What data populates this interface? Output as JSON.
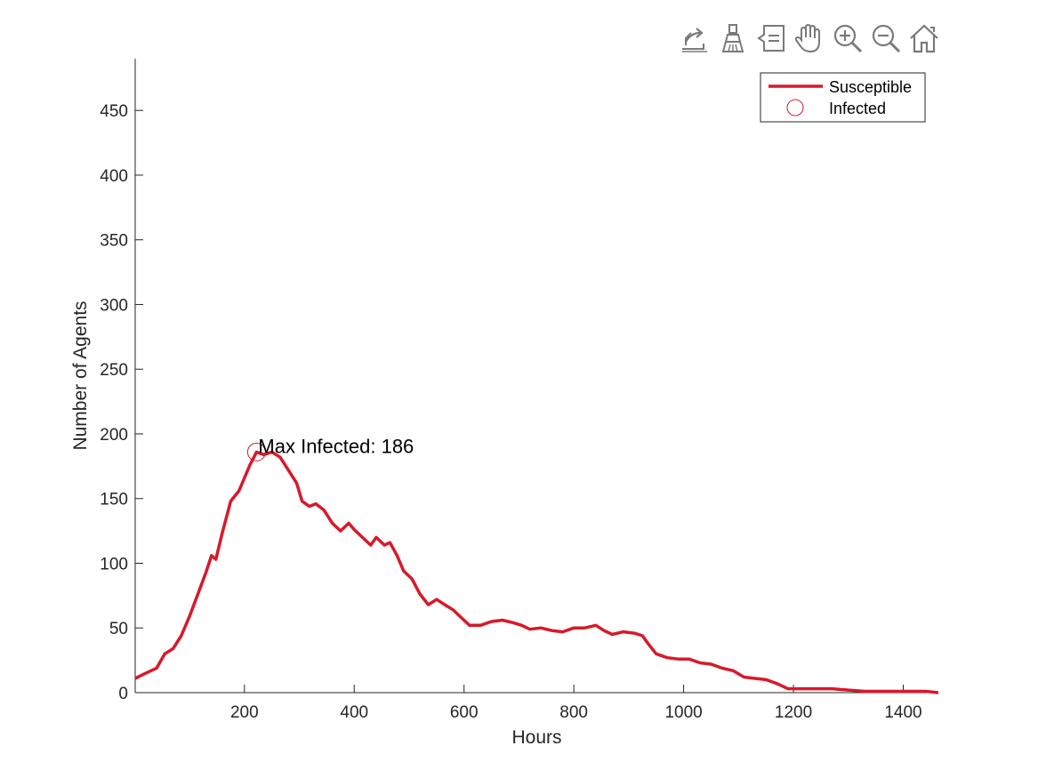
{
  "toolbar": {
    "items": [
      {
        "name": "export-icon"
      },
      {
        "name": "brush-icon"
      },
      {
        "name": "data-tips-icon"
      },
      {
        "name": "pan-hand-icon"
      },
      {
        "name": "zoom-in-icon"
      },
      {
        "name": "zoom-out-icon"
      },
      {
        "name": "home-icon"
      }
    ],
    "icon_color": "#7a7a7a"
  },
  "chart_data": {
    "type": "line",
    "xlabel": "Hours",
    "ylabel": "Number of Agents",
    "xlim": [
      1,
      1464
    ],
    "ylim": [
      0,
      490
    ],
    "xticks": [
      200,
      400,
      600,
      800,
      1000,
      1200,
      1400
    ],
    "yticks": [
      0,
      50,
      100,
      150,
      200,
      250,
      300,
      350,
      400,
      450
    ],
    "grid": false,
    "legend": {
      "placement": "top-right",
      "entries": [
        {
          "label": "Susceptible",
          "marker": "line",
          "color": "#d7192a"
        },
        {
          "label": "Infected",
          "marker": "circle",
          "color": "#d7192a"
        }
      ]
    },
    "series": [
      {
        "name": "Susceptible",
        "color": "#d7192a",
        "points": [
          [
            1,
            11
          ],
          [
            20,
            15
          ],
          [
            40,
            19
          ],
          [
            55,
            30
          ],
          [
            70,
            34
          ],
          [
            85,
            44
          ],
          [
            100,
            59
          ],
          [
            115,
            76
          ],
          [
            130,
            93
          ],
          [
            140,
            106
          ],
          [
            148,
            103
          ],
          [
            160,
            124
          ],
          [
            175,
            148
          ],
          [
            190,
            156
          ],
          [
            200,
            166
          ],
          [
            210,
            176
          ],
          [
            222,
            186
          ],
          [
            235,
            184
          ],
          [
            250,
            186
          ],
          [
            265,
            182
          ],
          [
            280,
            172
          ],
          [
            295,
            162
          ],
          [
            305,
            148
          ],
          [
            318,
            144
          ],
          [
            330,
            146
          ],
          [
            345,
            141
          ],
          [
            360,
            131
          ],
          [
            375,
            125
          ],
          [
            390,
            131
          ],
          [
            400,
            126
          ],
          [
            415,
            120
          ],
          [
            430,
            114
          ],
          [
            440,
            120
          ],
          [
            455,
            114
          ],
          [
            465,
            116
          ],
          [
            478,
            106
          ],
          [
            490,
            94
          ],
          [
            505,
            88
          ],
          [
            520,
            76
          ],
          [
            535,
            68
          ],
          [
            550,
            72
          ],
          [
            565,
            68
          ],
          [
            580,
            64
          ],
          [
            595,
            58
          ],
          [
            610,
            52
          ],
          [
            630,
            52
          ],
          [
            650,
            55
          ],
          [
            670,
            56
          ],
          [
            690,
            54
          ],
          [
            705,
            52
          ],
          [
            720,
            49
          ],
          [
            740,
            50
          ],
          [
            760,
            48
          ],
          [
            780,
            47
          ],
          [
            800,
            50
          ],
          [
            820,
            50
          ],
          [
            840,
            52
          ],
          [
            855,
            48
          ],
          [
            870,
            45
          ],
          [
            890,
            47
          ],
          [
            910,
            46
          ],
          [
            925,
            44
          ],
          [
            935,
            38
          ],
          [
            950,
            30
          ],
          [
            970,
            27
          ],
          [
            990,
            26
          ],
          [
            1010,
            26
          ],
          [
            1030,
            23
          ],
          [
            1050,
            22
          ],
          [
            1070,
            19
          ],
          [
            1090,
            17
          ],
          [
            1110,
            12
          ],
          [
            1130,
            11
          ],
          [
            1150,
            10
          ],
          [
            1170,
            7
          ],
          [
            1190,
            3
          ],
          [
            1210,
            3
          ],
          [
            1240,
            3
          ],
          [
            1270,
            3
          ],
          [
            1300,
            2
          ],
          [
            1330,
            1
          ],
          [
            1360,
            1
          ],
          [
            1400,
            1
          ],
          [
            1440,
            1
          ],
          [
            1464,
            0
          ]
        ]
      }
    ],
    "marker": {
      "series": "Infected",
      "x": 222,
      "y": 186
    },
    "annotation": {
      "text": "Max Infected: 186",
      "x": 222,
      "y": 186
    }
  }
}
